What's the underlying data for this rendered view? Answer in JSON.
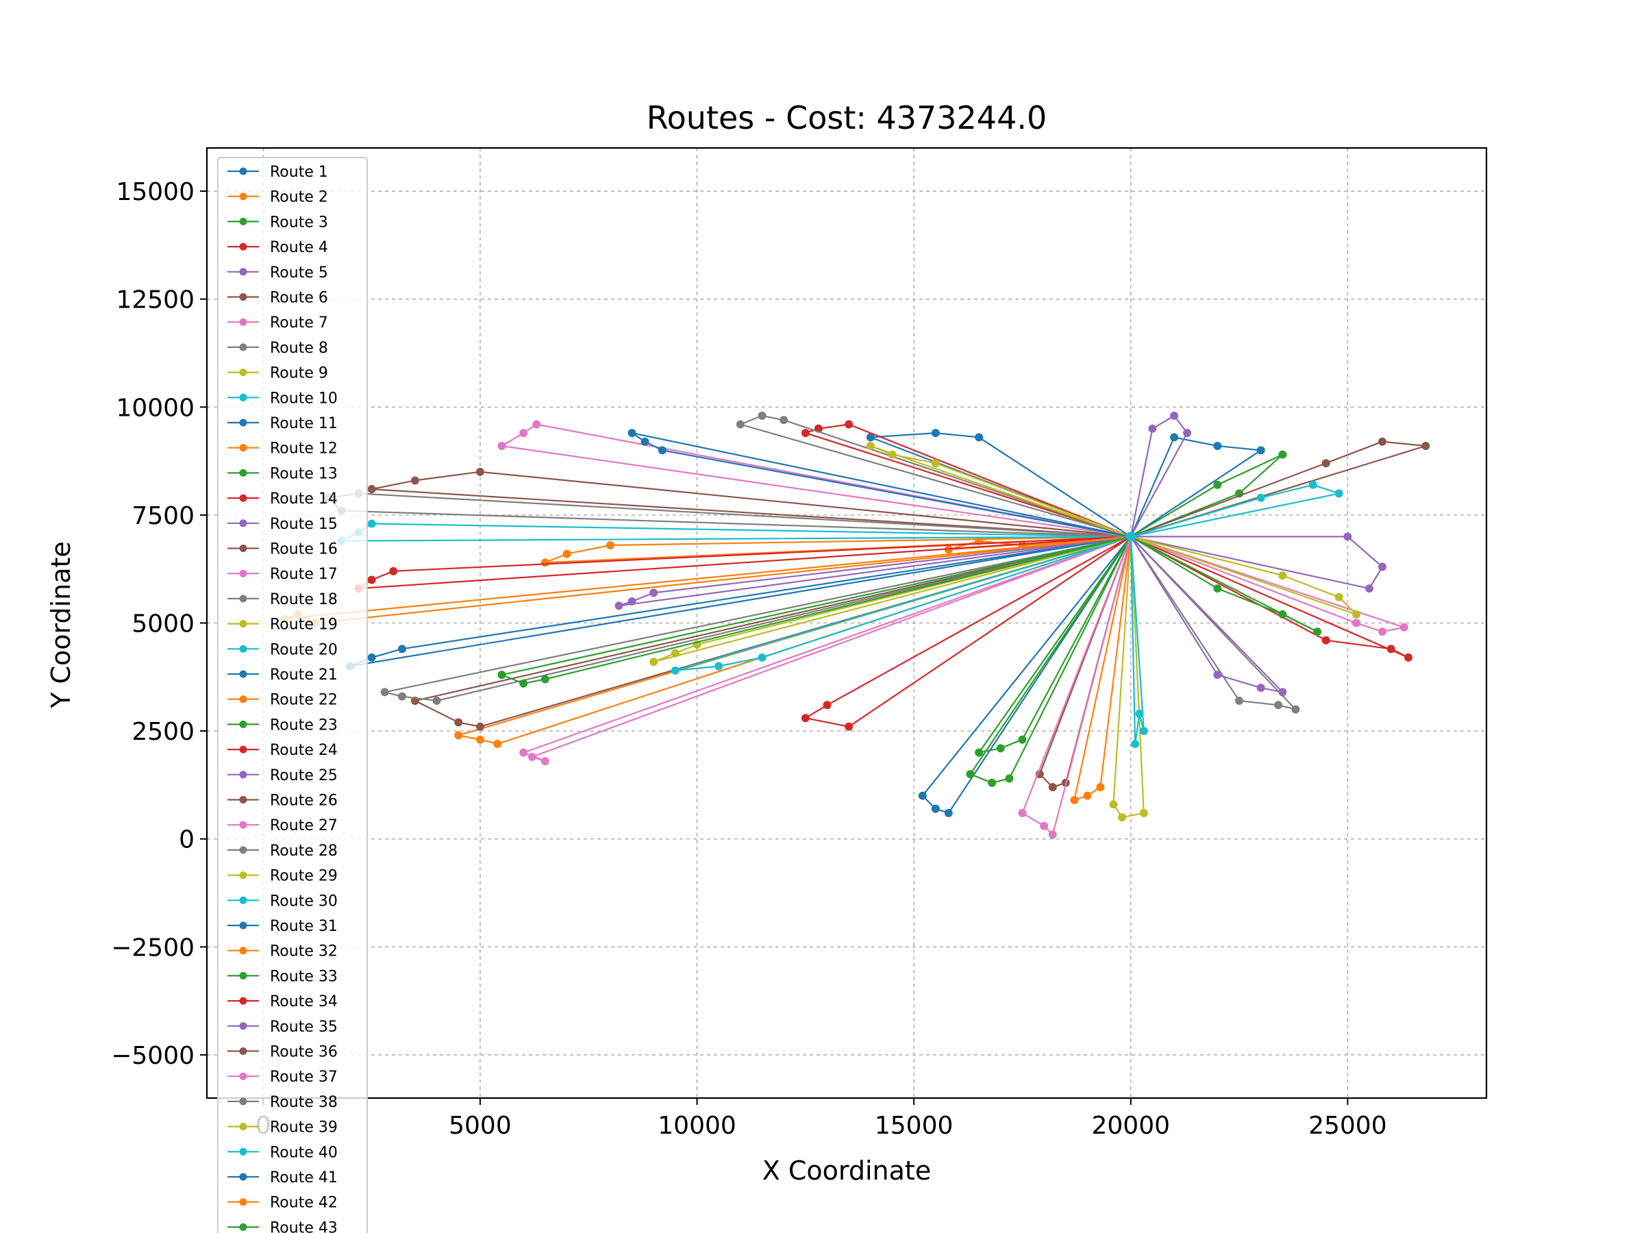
{
  "chart_data": {
    "type": "line",
    "title": "Routes - Cost: 4373244.0",
    "xlabel": "X Coordinate",
    "ylabel": "Y Coordinate",
    "xlim": [
      -1300,
      28200
    ],
    "ylim": [
      -6000,
      16000
    ],
    "xticks": [
      0,
      5000,
      10000,
      15000,
      20000,
      25000
    ],
    "yticks": [
      -5000,
      -2500,
      0,
      2500,
      5000,
      7500,
      10000,
      12500,
      15000
    ],
    "xtick_labels": [
      "0",
      "5000",
      "10000",
      "15000",
      "20000",
      "25000"
    ],
    "ytick_labels": [
      "−5000",
      "−2500",
      "0",
      "2500",
      "5000",
      "7500",
      "10000",
      "12500",
      "15000"
    ],
    "grid": true,
    "legend_position": "upper-left",
    "depot": [
      20000,
      7000
    ],
    "palette": [
      "#1f77b4",
      "#ff7f0e",
      "#2ca02c",
      "#d62728",
      "#9467bd",
      "#8c564b",
      "#e377c2",
      "#7f7f7f",
      "#bcbd22",
      "#17becf"
    ],
    "series": [
      {
        "name": "Route 1",
        "points": [
          [
            20000,
            7000
          ],
          [
            21000,
            9300
          ],
          [
            22000,
            9100
          ],
          [
            23000,
            9000
          ],
          [
            20000,
            7000
          ]
        ]
      },
      {
        "name": "Route 2",
        "points": [
          [
            20000,
            7000
          ],
          [
            17500,
            6800
          ],
          [
            16500,
            6900
          ],
          [
            15800,
            6700
          ],
          [
            20000,
            7000
          ]
        ]
      },
      {
        "name": "Route 3",
        "points": [
          [
            20000,
            7000
          ],
          [
            22000,
            8200
          ],
          [
            23500,
            8900
          ],
          [
            22500,
            8000
          ],
          [
            20000,
            7000
          ]
        ]
      },
      {
        "name": "Route 4",
        "points": [
          [
            20000,
            7000
          ],
          [
            24500,
            4600
          ],
          [
            26000,
            4400
          ],
          [
            26400,
            4200
          ],
          [
            20000,
            7000
          ]
        ]
      },
      {
        "name": "Route 5",
        "points": [
          [
            20000,
            7000
          ],
          [
            25000,
            7000
          ],
          [
            25800,
            6300
          ],
          [
            25500,
            5800
          ],
          [
            20000,
            7000
          ]
        ]
      },
      {
        "name": "Route 6",
        "points": [
          [
            20000,
            7000
          ],
          [
            24500,
            8700
          ],
          [
            25800,
            9200
          ],
          [
            26800,
            9100
          ],
          [
            20000,
            7000
          ]
        ]
      },
      {
        "name": "Route 7",
        "points": [
          [
            20000,
            7000
          ],
          [
            25200,
            5000
          ],
          [
            25800,
            4800
          ],
          [
            26300,
            4900
          ],
          [
            20000,
            7000
          ]
        ]
      },
      {
        "name": "Route 8",
        "points": [
          [
            20000,
            7000
          ],
          [
            22500,
            3200
          ],
          [
            23400,
            3100
          ],
          [
            23800,
            3000
          ],
          [
            20000,
            7000
          ]
        ]
      },
      {
        "name": "Route 9",
        "points": [
          [
            20000,
            7000
          ],
          [
            23500,
            6100
          ],
          [
            24800,
            5600
          ],
          [
            25200,
            5200
          ],
          [
            20000,
            7000
          ]
        ]
      },
      {
        "name": "Route 10",
        "points": [
          [
            20000,
            7000
          ],
          [
            23000,
            7900
          ],
          [
            24200,
            8200
          ],
          [
            24800,
            8000
          ],
          [
            20000,
            7000
          ]
        ]
      },
      {
        "name": "Route 11",
        "points": [
          [
            20000,
            7000
          ],
          [
            16500,
            9300
          ],
          [
            15500,
            9400
          ],
          [
            14000,
            9300
          ],
          [
            20000,
            7000
          ]
        ]
      },
      {
        "name": "Route 12",
        "points": [
          [
            20000,
            7000
          ],
          [
            8000,
            6800
          ],
          [
            7000,
            6600
          ],
          [
            6500,
            6400
          ],
          [
            20000,
            7000
          ]
        ]
      },
      {
        "name": "Route 13",
        "points": [
          [
            20000,
            7000
          ],
          [
            22000,
            5800
          ],
          [
            23500,
            5200
          ],
          [
            24300,
            4800
          ],
          [
            20000,
            7000
          ]
        ]
      },
      {
        "name": "Route 14",
        "points": [
          [
            20000,
            7000
          ],
          [
            13500,
            9600
          ],
          [
            12800,
            9500
          ],
          [
            12500,
            9400
          ],
          [
            20000,
            7000
          ]
        ]
      },
      {
        "name": "Route 15",
        "points": [
          [
            20000,
            7000
          ],
          [
            20500,
            9500
          ],
          [
            21000,
            9800
          ],
          [
            21300,
            9400
          ],
          [
            20000,
            7000
          ]
        ]
      },
      {
        "name": "Route 16",
        "points": [
          [
            20000,
            7000
          ],
          [
            5000,
            8500
          ],
          [
            3500,
            8300
          ],
          [
            2500,
            8100
          ],
          [
            20000,
            7000
          ]
        ]
      },
      {
        "name": "Route 17",
        "points": [
          [
            20000,
            7000
          ],
          [
            6300,
            9600
          ],
          [
            6000,
            9400
          ],
          [
            5500,
            9100
          ],
          [
            20000,
            7000
          ]
        ]
      },
      {
        "name": "Route 18",
        "points": [
          [
            20000,
            7000
          ],
          [
            11000,
            9600
          ],
          [
            11500,
            9800
          ],
          [
            12000,
            9700
          ],
          [
            20000,
            7000
          ]
        ]
      },
      {
        "name": "Route 19",
        "points": [
          [
            20000,
            7000
          ],
          [
            14000,
            9100
          ],
          [
            14500,
            8900
          ],
          [
            15500,
            8700
          ],
          [
            20000,
            7000
          ]
        ]
      },
      {
        "name": "Route 20",
        "points": [
          [
            20000,
            7000
          ],
          [
            2500,
            7300
          ],
          [
            2200,
            7100
          ],
          [
            1800,
            6900
          ],
          [
            20000,
            7000
          ]
        ]
      },
      {
        "name": "Route 21",
        "points": [
          [
            20000,
            7000
          ],
          [
            3200,
            4400
          ],
          [
            2500,
            4200
          ],
          [
            2000,
            4000
          ],
          [
            20000,
            7000
          ]
        ]
      },
      {
        "name": "Route 22",
        "points": [
          [
            20000,
            7000
          ],
          [
            4500,
            2400
          ],
          [
            5000,
            2300
          ],
          [
            5400,
            2200
          ],
          [
            20000,
            7000
          ]
        ]
      },
      {
        "name": "Route 23",
        "points": [
          [
            20000,
            7000
          ],
          [
            17500,
            2300
          ],
          [
            17000,
            2100
          ],
          [
            16500,
            2000
          ],
          [
            20000,
            7000
          ]
        ]
      },
      {
        "name": "Route 24",
        "points": [
          [
            20000,
            7000
          ],
          [
            3000,
            6200
          ],
          [
            2500,
            6000
          ],
          [
            2200,
            5800
          ],
          [
            20000,
            7000
          ]
        ]
      },
      {
        "name": "Route 25",
        "points": [
          [
            20000,
            7000
          ],
          [
            9000,
            5700
          ],
          [
            8500,
            5500
          ],
          [
            8200,
            5400
          ],
          [
            20000,
            7000
          ]
        ]
      },
      {
        "name": "Route 26",
        "points": [
          [
            20000,
            7000
          ],
          [
            3500,
            3200
          ],
          [
            4500,
            2700
          ],
          [
            5000,
            2600
          ],
          [
            20000,
            7000
          ]
        ]
      },
      {
        "name": "Route 27",
        "points": [
          [
            20000,
            7000
          ],
          [
            6000,
            2000
          ],
          [
            6500,
            1800
          ],
          [
            6200,
            1900
          ],
          [
            20000,
            7000
          ]
        ]
      },
      {
        "name": "Route 28",
        "points": [
          [
            20000,
            7000
          ],
          [
            2800,
            3400
          ],
          [
            3200,
            3300
          ],
          [
            4000,
            3200
          ],
          [
            20000,
            7000
          ]
        ]
      },
      {
        "name": "Route 29",
        "points": [
          [
            20000,
            7000
          ],
          [
            19600,
            800
          ],
          [
            19800,
            500
          ],
          [
            20300,
            600
          ],
          [
            20000,
            7000
          ]
        ]
      },
      {
        "name": "Route 30",
        "points": [
          [
            20000,
            7000
          ],
          [
            11500,
            4200
          ],
          [
            10500,
            4000
          ],
          [
            9500,
            3900
          ],
          [
            20000,
            7000
          ]
        ]
      },
      {
        "name": "Route 31",
        "points": [
          [
            20000,
            7000
          ],
          [
            15200,
            1000
          ],
          [
            15500,
            700
          ],
          [
            15800,
            600
          ],
          [
            20000,
            7000
          ]
        ]
      },
      {
        "name": "Route 32",
        "points": [
          [
            20000,
            7000
          ],
          [
            19300,
            1200
          ],
          [
            19000,
            1000
          ],
          [
            18700,
            900
          ],
          [
            20000,
            7000
          ]
        ]
      },
      {
        "name": "Route 33",
        "points": [
          [
            20000,
            7000
          ],
          [
            16300,
            1500
          ],
          [
            16800,
            1300
          ],
          [
            17200,
            1400
          ],
          [
            20000,
            7000
          ]
        ]
      },
      {
        "name": "Route 34",
        "points": [
          [
            20000,
            7000
          ],
          [
            13000,
            3100
          ],
          [
            12500,
            2800
          ],
          [
            13500,
            2600
          ],
          [
            20000,
            7000
          ]
        ]
      },
      {
        "name": "Route 35",
        "points": [
          [
            20000,
            7000
          ],
          [
            22000,
            3800
          ],
          [
            23000,
            3500
          ],
          [
            23500,
            3400
          ],
          [
            20000,
            7000
          ]
        ]
      },
      {
        "name": "Route 36",
        "points": [
          [
            20000,
            7000
          ],
          [
            18500,
            1300
          ],
          [
            18200,
            1200
          ],
          [
            17900,
            1500
          ],
          [
            20000,
            7000
          ]
        ]
      },
      {
        "name": "Route 37",
        "points": [
          [
            20000,
            7000
          ],
          [
            17500,
            600
          ],
          [
            18000,
            300
          ],
          [
            18200,
            100
          ],
          [
            20000,
            7000
          ]
        ]
      },
      {
        "name": "Route 38",
        "points": [
          [
            20000,
            7000
          ],
          [
            1800,
            7600
          ],
          [
            1500,
            7900
          ],
          [
            2200,
            8000
          ],
          [
            20000,
            7000
          ]
        ]
      },
      {
        "name": "Route 39",
        "points": [
          [
            20000,
            7000
          ],
          [
            10000,
            4500
          ],
          [
            9500,
            4300
          ],
          [
            9000,
            4100
          ],
          [
            20000,
            7000
          ]
        ]
      },
      {
        "name": "Route 40",
        "points": [
          [
            20000,
            7000
          ],
          [
            20300,
            2500
          ],
          [
            20200,
            2900
          ],
          [
            20100,
            2200
          ],
          [
            20000,
            7000
          ]
        ]
      },
      {
        "name": "Route 41",
        "points": [
          [
            20000,
            7000
          ],
          [
            8500,
            9400
          ],
          [
            8800,
            9200
          ],
          [
            9200,
            9000
          ],
          [
            20000,
            7000
          ]
        ]
      },
      {
        "name": "Route 42",
        "points": [
          [
            20000,
            7000
          ],
          [
            1200,
            5000
          ],
          [
            800,
            5200
          ],
          [
            500,
            5100
          ],
          [
            20000,
            7000
          ]
        ]
      },
      {
        "name": "Route 43",
        "points": [
          [
            20000,
            7000
          ],
          [
            5500,
            3800
          ],
          [
            6000,
            3600
          ],
          [
            6500,
            3700
          ],
          [
            20000,
            7000
          ]
        ]
      }
    ]
  }
}
